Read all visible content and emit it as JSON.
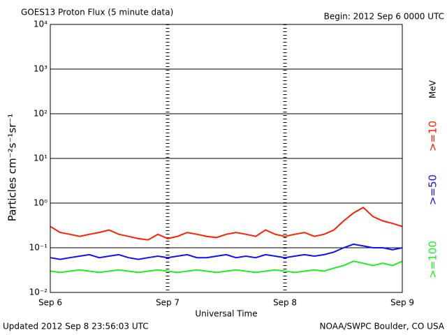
{
  "chart_data": {
    "type": "line",
    "title": "GOES13 Proton Flux (5 minute data)",
    "subtitle": "Begin: 2012 Sep 6 0000 UTC",
    "x_label": "Universal Time",
    "y_label": "Particles cm⁻²s⁻¹sr⁻¹",
    "legend_unit": "MeV",
    "footer_left": "Updated 2012 Sep  8 23:56:03 UTC",
    "footer_right": "NOAA/SWPC Boulder, CO USA",
    "yscale": "log",
    "grid": true,
    "ylim": [
      0.01,
      10000
    ],
    "yticks": [
      {
        "value": 0.01,
        "label": "10⁻²"
      },
      {
        "value": 0.1,
        "label": "10⁻¹"
      },
      {
        "value": 1,
        "label": "10⁰"
      },
      {
        "value": 10,
        "label": "10¹"
      },
      {
        "value": 100,
        "label": "10²"
      },
      {
        "value": 1000,
        "label": "10³"
      },
      {
        "value": 10000,
        "label": "10⁴"
      }
    ],
    "categories": [
      "Sep 6",
      null,
      null,
      null,
      null,
      null,
      null,
      null,
      null,
      null,
      null,
      null,
      "Sep 7",
      null,
      null,
      null,
      null,
      null,
      null,
      null,
      null,
      null,
      null,
      null,
      "Sep 8",
      null,
      null,
      null,
      null,
      null,
      null,
      null,
      null,
      null,
      null,
      null,
      "Sep 9"
    ],
    "series": [
      {
        "name": ">=10",
        "color": "#ff2000",
        "values": [
          0.3,
          0.22,
          0.2,
          0.18,
          0.2,
          0.22,
          0.25,
          0.2,
          0.18,
          0.16,
          0.15,
          0.2,
          0.16,
          0.18,
          0.22,
          0.2,
          0.18,
          0.17,
          0.2,
          0.22,
          0.2,
          0.18,
          0.25,
          0.2,
          0.18,
          0.2,
          0.22,
          0.18,
          0.2,
          0.25,
          0.4,
          0.6,
          0.8,
          0.5,
          0.4,
          0.35,
          0.3
        ]
      },
      {
        "name": ">=50",
        "color": "#1010ff",
        "values": [
          0.06,
          0.055,
          0.06,
          0.065,
          0.07,
          0.06,
          0.065,
          0.07,
          0.06,
          0.055,
          0.06,
          0.065,
          0.06,
          0.065,
          0.07,
          0.06,
          0.06,
          0.065,
          0.07,
          0.06,
          0.065,
          0.06,
          0.07,
          0.065,
          0.06,
          0.065,
          0.07,
          0.065,
          0.07,
          0.08,
          0.1,
          0.12,
          0.11,
          0.1,
          0.1,
          0.09,
          0.1
        ]
      },
      {
        "name": ">=100",
        "color": "#20ee20",
        "values": [
          0.03,
          0.028,
          0.03,
          0.032,
          0.03,
          0.028,
          0.03,
          0.032,
          0.03,
          0.028,
          0.03,
          0.032,
          0.03,
          0.028,
          0.03,
          0.032,
          0.03,
          0.028,
          0.03,
          0.032,
          0.03,
          0.028,
          0.03,
          0.032,
          0.03,
          0.028,
          0.03,
          0.032,
          0.03,
          0.035,
          0.04,
          0.05,
          0.045,
          0.04,
          0.045,
          0.04,
          0.05
        ]
      }
    ]
  }
}
